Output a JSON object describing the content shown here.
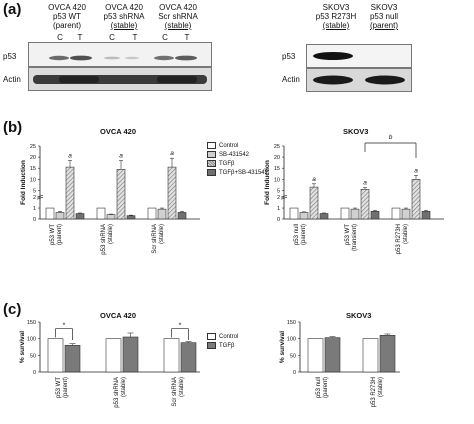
{
  "panel_a": {
    "label": "(a)",
    "left_lanes": [
      {
        "line1": "OVCA 420",
        "line2": "p53 WT",
        "line3": "(parent)"
      },
      {
        "line1": "OVCA 420",
        "line2": "p53 shRNA",
        "line3": "(stable)"
      },
      {
        "line1": "OVCA 420",
        "line2": "Scr shRNA",
        "line3": "(stable)"
      }
    ],
    "ct_labels": [
      "C",
      "T",
      "C",
      "T",
      "C",
      "T"
    ],
    "right_lanes": [
      {
        "line1": "SKOV3",
        "line2": "p53 R273H",
        "line3": "(stable)"
      },
      {
        "line1": "SKOV3",
        "line2": "p53 null",
        "line3": "(parent)"
      }
    ],
    "row_p53": "p53",
    "row_actin": "Actin"
  },
  "panel_b": {
    "label": "(b)",
    "left_title": "OVCA 420",
    "right_title": "SKOV3",
    "ylabel": "Fold Induction",
    "legend": [
      "Control",
      "SB-431542",
      "TGFβ",
      "TGFβ+SB-431542"
    ],
    "sig_label": "a",
    "bracket_label": "b"
  },
  "panel_c": {
    "label": "(c)",
    "left_title": "OVCA 420",
    "right_title": "SKOV3",
    "ylabel": "% survival",
    "legend": [
      "Control",
      "TGFβ"
    ],
    "sig_label": "*"
  },
  "colors": {
    "control": "#ffffff",
    "sb": "#d0d0d0",
    "tgfb_hatch": "#a8a8a8",
    "combo": "#707070",
    "tgfb_c": "#7a7a7a"
  },
  "chart_data": [
    {
      "type": "bar",
      "title": "OVCA 420",
      "ylabel": "Fold Induction",
      "categories": [
        "p53 WT (parent)",
        "p53 shRNA (stable)",
        "Scr shRNA (stable)"
      ],
      "y_ticks": [
        "0",
        "1",
        "2",
        "5",
        "10",
        "15",
        "20",
        "25"
      ],
      "series": [
        {
          "name": "Control",
          "values": [
            1.0,
            1.0,
            1.0
          ]
        },
        {
          "name": "SB-431542",
          "values": [
            0.6,
            0.4,
            0.9
          ]
        },
        {
          "name": "TGFβ",
          "values": [
            15.5,
            14.5,
            15.5
          ]
        },
        {
          "name": "TGFβ+SB-431542",
          "values": [
            0.5,
            0.3,
            0.6
          ]
        }
      ],
      "errors": [
        [
          0,
          0,
          0
        ],
        [
          0.1,
          0.05,
          0.1
        ],
        [
          3,
          4,
          4
        ],
        [
          0.05,
          0.05,
          0.1
        ]
      ],
      "sig": [
        "a",
        "a",
        "a"
      ]
    },
    {
      "type": "bar",
      "title": "SKOV3",
      "ylabel": "Fold Induction",
      "categories": [
        "p53 null (parent)",
        "p53 WT (transient)",
        "p53 R273H (stable)"
      ],
      "y_ticks": [
        "0",
        "1",
        "2",
        "5",
        "10",
        "15",
        "20",
        "25"
      ],
      "series": [
        {
          "name": "Control",
          "values": [
            1.0,
            1.0,
            1.0
          ]
        },
        {
          "name": "SB-431542",
          "values": [
            0.6,
            0.9,
            0.9
          ]
        },
        {
          "name": "TGFβ",
          "values": [
            6.5,
            5.5,
            10.0
          ]
        },
        {
          "name": "TGFβ+SB-431542",
          "values": [
            0.5,
            0.7,
            0.7
          ]
        }
      ],
      "errors": [
        [
          0,
          0,
          0
        ],
        [
          0.05,
          0.1,
          0.1
        ],
        [
          1.5,
          0.8,
          1.8
        ],
        [
          0.05,
          0.1,
          0.1
        ]
      ],
      "sig": [
        "a",
        "a",
        "a"
      ]
    },
    {
      "type": "bar",
      "title": "OVCA 420",
      "ylabel": "% survival",
      "categories": [
        "p53 WT (parent)",
        "p53 shRNA (stable)",
        "Scr shRNA (stable)"
      ],
      "ylim": [
        0,
        150
      ],
      "y_ticks": [
        "0",
        "50",
        "100",
        "150"
      ],
      "series": [
        {
          "name": "Control",
          "values": [
            100,
            100,
            100
          ]
        },
        {
          "name": "TGFβ",
          "values": [
            80,
            105,
            88
          ]
        }
      ],
      "errors": [
        [
          0,
          0,
          0
        ],
        [
          5,
          12,
          3
        ]
      ],
      "sig_pairs": [
        0,
        2
      ]
    },
    {
      "type": "bar",
      "title": "SKOV3",
      "ylabel": "% survival",
      "categories": [
        "p53 null (parent)",
        "p53 R273H (stable)"
      ],
      "ylim": [
        0,
        150
      ],
      "y_ticks": [
        "0",
        "50",
        "100",
        "150"
      ],
      "series": [
        {
          "name": "Control",
          "values": [
            100,
            100
          ]
        },
        {
          "name": "TGFβ",
          "values": [
            103,
            110
          ]
        }
      ],
      "errors": [
        [
          0,
          0
        ],
        [
          3,
          4
        ]
      ]
    }
  ]
}
